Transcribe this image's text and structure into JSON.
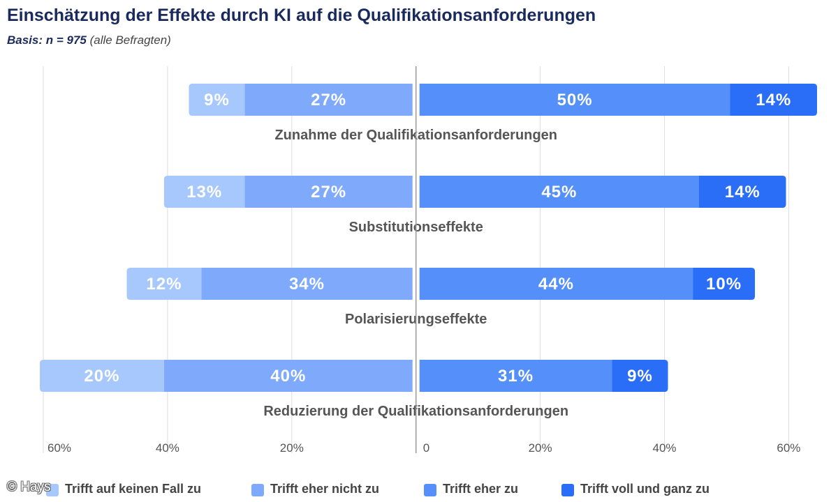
{
  "title": "Einschätzung der Effekte durch KI auf die Qualifikationsanforderungen",
  "subtitle": {
    "basis": "Basis: n = 975",
    "rest": "(alle Befragten)"
  },
  "copyright": "© Hays",
  "colors": {
    "keinen_fall": "#a7c8fd",
    "eher_nicht": "#7faafc",
    "eher_zu": "#5590fa",
    "voll": "#2a6ef7",
    "grid": "#dddddd",
    "axis": "#999999",
    "category_text": "#555555",
    "tick_text": "#555555",
    "bar_text": "#ffffff"
  },
  "chart_data": {
    "type": "bar",
    "orientation": "horizontal-diverging",
    "categories": [
      "Zunahme der Qualifikationsanforderungen",
      "Substitutionseffekte",
      "Polarisierungseffekte",
      "Reduzierung der Qualifikationsanforderungen"
    ],
    "series": [
      {
        "name": "Trifft auf keinen Fall zu",
        "side": "negative",
        "color": "#a7c8fd",
        "values": [
          9,
          13,
          12,
          20
        ]
      },
      {
        "name": "Trifft eher nicht zu",
        "side": "negative",
        "color": "#7faafc",
        "values": [
          27,
          27,
          34,
          40
        ]
      },
      {
        "name": "Trifft eher zu",
        "side": "positive",
        "color": "#5590fa",
        "values": [
          50,
          45,
          44,
          31
        ]
      },
      {
        "name": "Trifft voll und ganz zu",
        "side": "positive",
        "color": "#2a6ef7",
        "values": [
          14,
          14,
          10,
          9
        ]
      }
    ],
    "value_suffix": "%",
    "x_ticks": [
      {
        "value": -60,
        "label": "60%"
      },
      {
        "value": -40,
        "label": "40%"
      },
      {
        "value": -20,
        "label": "20%"
      },
      {
        "value": 0,
        "label": "0"
      },
      {
        "value": 20,
        "label": "20%"
      },
      {
        "value": 40,
        "label": "40%"
      },
      {
        "value": 60,
        "label": "60%"
      }
    ],
    "xlim": [
      -60,
      64
    ],
    "grid": true,
    "legend_position": "bottom"
  }
}
